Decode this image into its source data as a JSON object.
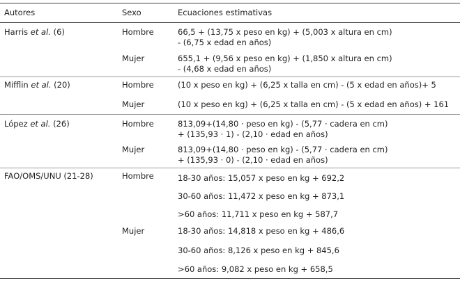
{
  "header": {
    "col1": "Autores",
    "col2": "Sexo",
    "col3": "Ecuaciones estimativas"
  },
  "rows": {
    "harris": {
      "author_pre": "Harris ",
      "author_em": "et al.",
      "author_post": " (6)",
      "hombre": {
        "sex": "Hombre",
        "line1": "66,5 + (13,75 x peso en kg) + (5,003 x altura en cm)",
        "line2": "- (6,75 x edad en años)"
      },
      "mujer": {
        "sex": "Mujer",
        "line1": "655,1 + (9,56 x peso en kg) + (1,850 x altura en cm)",
        "line2": "- (4,68 x edad en años)"
      }
    },
    "mifflin": {
      "author_pre": "Mifflin ",
      "author_em": "et al.",
      "author_post": " (20)",
      "hombre": {
        "sex": "Hombre",
        "line1": "(10 x peso en kg) + (6,25 x talla en cm) - (5 x edad en años)+ 5"
      },
      "mujer": {
        "sex": "Mujer",
        "line1": "(10 x peso en kg) + (6,25 x talla en cm) - (5 x edad en años) + 161"
      }
    },
    "lopez": {
      "author_pre": "López ",
      "author_em": "et al.",
      "author_post": " (26)",
      "hombre": {
        "sex": "Hombre",
        "line1": "813,09+(14,80 · peso en kg) - (5,77 · cadera en cm)",
        "line2": "+ (135,93 · 1) - (2,10 · edad en años)"
      },
      "mujer": {
        "sex": "Mujer",
        "line1": "813,09+(14,80 · peso en kg) - (5,77 · cadera en cm)",
        "line2": "+ (135,93 · 0) - (2,10 · edad en años)"
      }
    },
    "fao": {
      "author": "FAO/OMS/UNU (21-28)",
      "hombre": {
        "sex": "Hombre",
        "eq": [
          "18-30 años: 15,057 x peso en kg + 692,2",
          "30-60 años: 11,472 x peso en kg + 873,1",
          ">60 años: 11,711 x peso en kg + 587,7"
        ]
      },
      "mujer": {
        "sex": "Mujer",
        "eq": [
          "18-30 años: 14,818 x peso en kg + 486,6",
          "30-60 años: 8,126 x peso en kg + 845,6",
          ">60 años: 9,082 x peso en kg + 658,5"
        ]
      }
    }
  }
}
